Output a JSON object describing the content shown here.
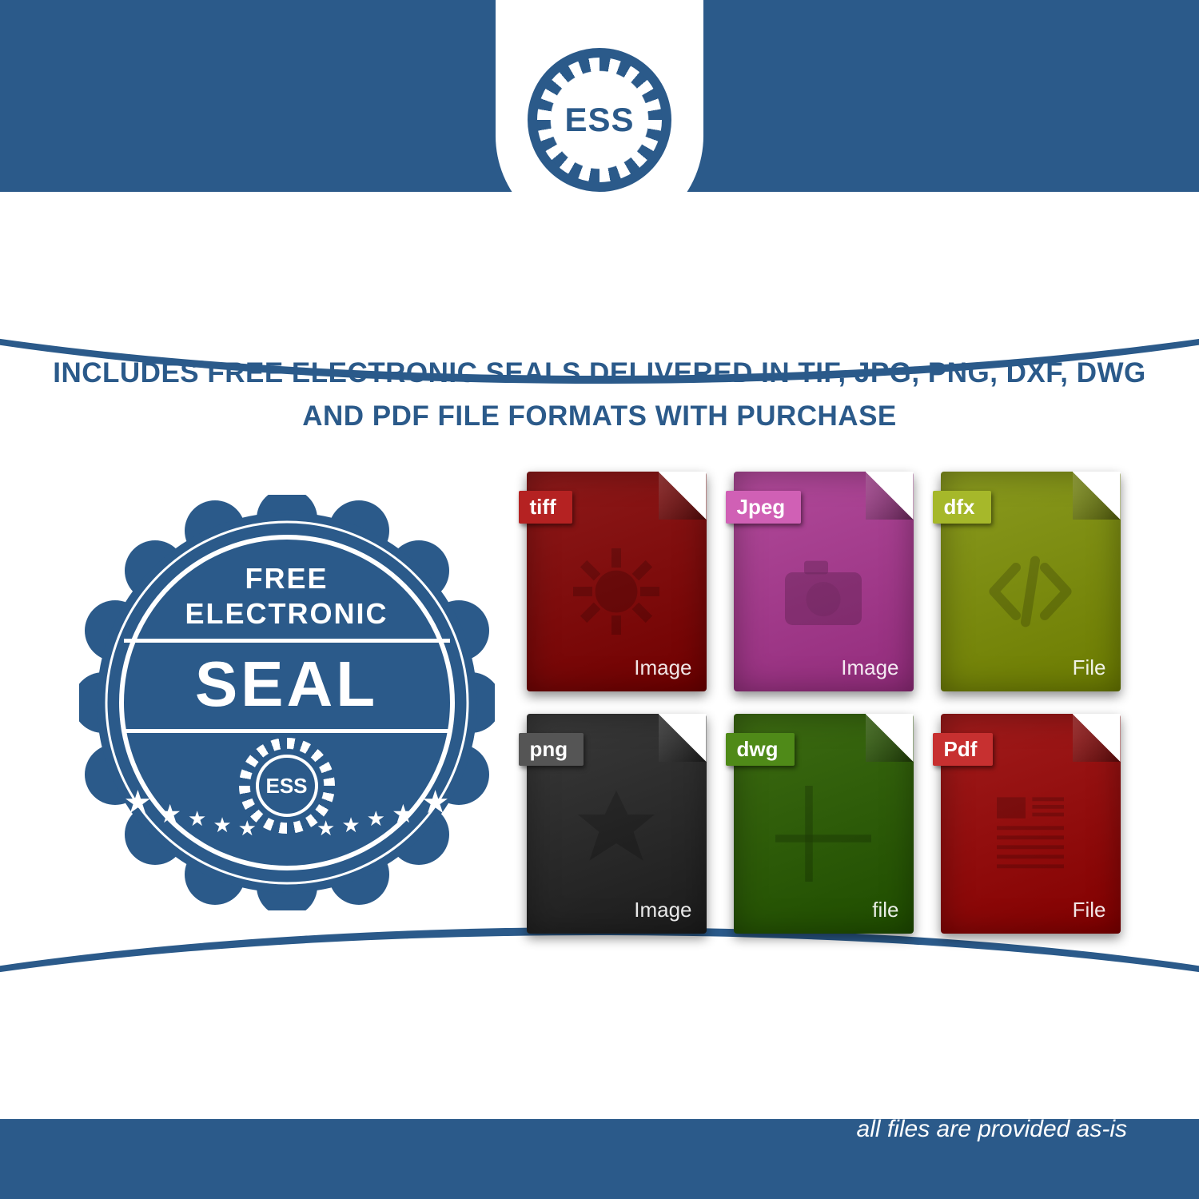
{
  "colors": {
    "brand_blue": "#2b5a8a",
    "white": "#ffffff"
  },
  "logo": {
    "text": "ESS"
  },
  "headline": "INCLUDES FREE ELECTRONIC SEALS DELIVERED IN TIF, JPG, PNG, DXF, DWG AND PDF FILE FORMATS WITH PURCHASE",
  "seal": {
    "line1": "FREE",
    "line2": "ELECTRONIC",
    "line3": "SEAL",
    "gear_text": "ESS",
    "star_count": 10
  },
  "files": [
    {
      "tab": "tiff",
      "footer": "Image",
      "bg": "#8e1a1a",
      "tab_bg": "#b52222",
      "icon": "gear"
    },
    {
      "tab": "Jpeg",
      "footer": "Image",
      "bg": "#b14a9a",
      "tab_bg": "#d060b5",
      "icon": "camera"
    },
    {
      "tab": "dfx",
      "footer": "File",
      "bg": "#8a9a1f",
      "tab_bg": "#a6b82a",
      "icon": "code"
    },
    {
      "tab": "png",
      "footer": "Image",
      "bg": "#3a3a3a",
      "tab_bg": "#555555",
      "icon": "starburst"
    },
    {
      "tab": "dwg",
      "footer": "file",
      "bg": "#3d6b12",
      "tab_bg": "#4f8a18",
      "icon": "grid"
    },
    {
      "tab": "Pdf",
      "footer": "File",
      "bg": "#a11c1c",
      "tab_bg": "#c73030",
      "icon": "document"
    }
  ],
  "footnote": "all files are provided as-is"
}
